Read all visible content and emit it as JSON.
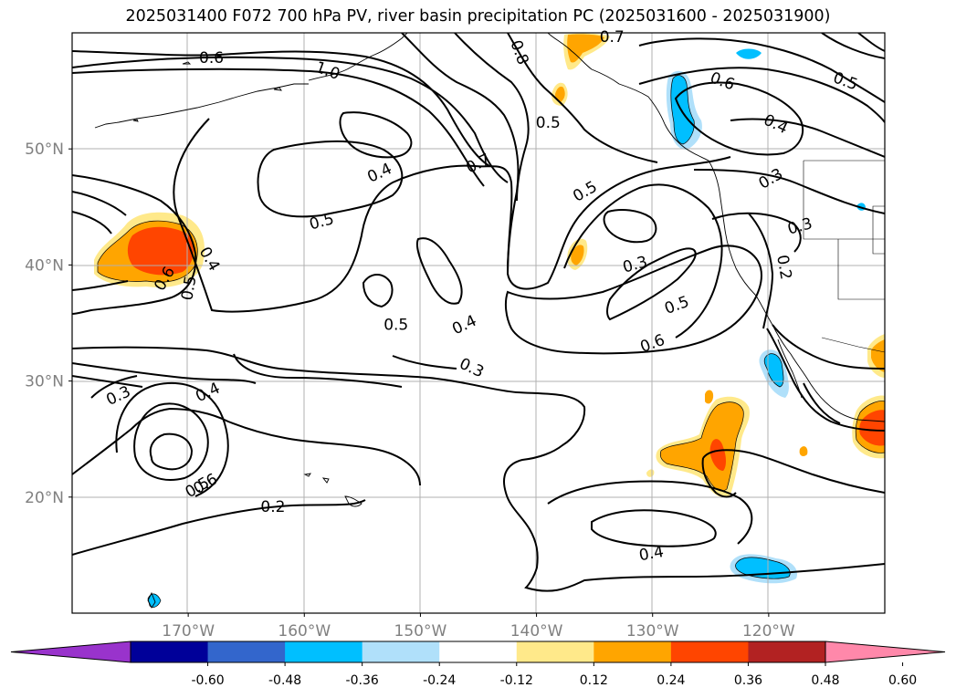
{
  "title": "2025031400 F072 700 hPa PV, river basin precipitation PC (2025031600 - 2025031900)",
  "longitude_labels": [
    {
      "lon": -170,
      "label": "170°W"
    },
    {
      "lon": -160,
      "label": "160°W"
    },
    {
      "lon": -150,
      "label": "150°W"
    },
    {
      "lon": -140,
      "label": "140°W"
    },
    {
      "lon": -130,
      "label": "130°W"
    },
    {
      "lon": -120,
      "label": "120°W"
    }
  ],
  "latitude_labels": [
    {
      "lat": 20,
      "label": "20°N"
    },
    {
      "lat": 30,
      "label": "30°N"
    },
    {
      "lat": 40,
      "label": "40°N"
    },
    {
      "lat": 50,
      "label": "50°N"
    }
  ],
  "contour_labels": [
    {
      "lon": -168.0,
      "lat": 57.8,
      "text": "0.6",
      "rot": 0
    },
    {
      "lon": -158.0,
      "lat": 56.7,
      "text": "1.0",
      "rot": 20
    },
    {
      "lon": -141.5,
      "lat": 58.3,
      "text": "0.8",
      "rot": 70
    },
    {
      "lon": -133.5,
      "lat": 59.6,
      "text": "0.7",
      "rot": 0
    },
    {
      "lon": -139.0,
      "lat": 52.2,
      "text": "0.5",
      "rot": 0
    },
    {
      "lon": -145.0,
      "lat": 48.7,
      "text": "0.7",
      "rot": -25
    },
    {
      "lon": -153.5,
      "lat": 47.9,
      "text": "0.4",
      "rot": -25
    },
    {
      "lon": -158.5,
      "lat": 43.7,
      "text": "0.5",
      "rot": -15
    },
    {
      "lon": -135.8,
      "lat": 46.3,
      "text": "0.5",
      "rot": -30
    },
    {
      "lon": -131.5,
      "lat": 40.0,
      "text": "0.3",
      "rot": -15
    },
    {
      "lon": -127.9,
      "lat": 36.5,
      "text": "0.5",
      "rot": -20
    },
    {
      "lon": -130.0,
      "lat": 33.2,
      "text": "0.6",
      "rot": -20
    },
    {
      "lon": -124.0,
      "lat": 55.8,
      "text": "0.6",
      "rot": 20
    },
    {
      "lon": -119.4,
      "lat": 52.1,
      "text": "0.4",
      "rot": 25
    },
    {
      "lon": -119.8,
      "lat": 47.4,
      "text": "0.3",
      "rot": -30
    },
    {
      "lon": -117.3,
      "lat": 43.3,
      "text": "0.3",
      "rot": -15
    },
    {
      "lon": -118.7,
      "lat": 39.8,
      "text": "0.2",
      "rot": 80
    },
    {
      "lon": -113.4,
      "lat": 55.8,
      "text": "0.5",
      "rot": 20
    },
    {
      "lon": -172.0,
      "lat": 38.8,
      "text": "0.6",
      "rot": -60
    },
    {
      "lon": -169.9,
      "lat": 38.0,
      "text": "0.5",
      "rot": -80
    },
    {
      "lon": -168.2,
      "lat": 40.5,
      "text": "0.4",
      "rot": 60
    },
    {
      "lon": -152.1,
      "lat": 34.8,
      "text": "0.5",
      "rot": 0
    },
    {
      "lon": -146.2,
      "lat": 34.8,
      "text": "0.4",
      "rot": -25
    },
    {
      "lon": -145.6,
      "lat": 31.1,
      "text": "0.3",
      "rot": 25
    },
    {
      "lon": -168.3,
      "lat": 29.0,
      "text": "0.4",
      "rot": -25
    },
    {
      "lon": -176.0,
      "lat": 28.7,
      "text": "0.3",
      "rot": -25
    },
    {
      "lon": -168.5,
      "lat": 21.1,
      "text": "0.6",
      "rot": -30
    },
    {
      "lon": -169.2,
      "lat": 20.8,
      "text": "0.5",
      "rot": -30
    },
    {
      "lon": -162.7,
      "lat": 19.1,
      "text": "0.2",
      "rot": 0
    },
    {
      "lon": -130.1,
      "lat": 15.1,
      "text": "0.4",
      "rot": -10
    }
  ],
  "colorbar": {
    "ticks": [
      "-0.60",
      "-0.48",
      "-0.36",
      "-0.24",
      "-0.12",
      "0.12",
      "0.24",
      "0.36",
      "0.48",
      "0.60"
    ],
    "colors": [
      "#9933cc",
      "#000099",
      "#3366cc",
      "#00bfff",
      "#b0e0fa",
      "#ffffff",
      "#ffe98a",
      "#ffa500",
      "#ff4500",
      "#b22222",
      "#ff88aa"
    ]
  }
}
